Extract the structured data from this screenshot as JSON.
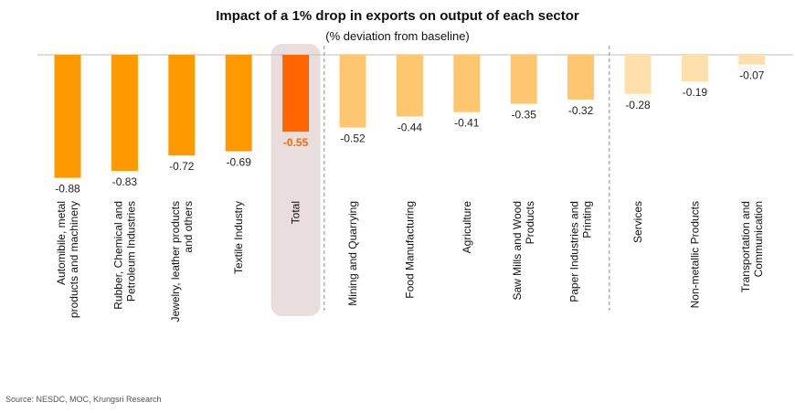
{
  "chart_data": {
    "type": "bar",
    "title": "Impact of a 1% drop in exports on output of each sector",
    "subtitle": "(% deviation from baseline)",
    "source": "Source: NESDC, MOC, Krungsri Research",
    "categories": [
      [
        "Automibile, metal",
        "products and machinery"
      ],
      [
        "Rubber, Chemical and",
        "Petroleum Industries"
      ],
      [
        "Jewelry, leather products",
        "and others"
      ],
      [
        "Textile Industry"
      ],
      [
        "Total"
      ],
      [
        "Mining and Quarrying"
      ],
      [
        "Food Manufacturing"
      ],
      [
        "Agriculture"
      ],
      [
        "Saw Mills and Wood",
        "Products"
      ],
      [
        "Paper Industries and",
        "Printing"
      ],
      [
        "Services"
      ],
      [
        "Non-metallic Products"
      ],
      [
        "Transportation and",
        "Communication"
      ]
    ],
    "values": [
      -0.88,
      -0.83,
      -0.72,
      -0.69,
      -0.55,
      -0.52,
      -0.44,
      -0.41,
      -0.35,
      -0.32,
      -0.28,
      -0.19,
      -0.07
    ],
    "value_labels": [
      "-0.88",
      "-0.83",
      "-0.72",
      "-0.69",
      "-0.55",
      "-0.52",
      "-0.44",
      "-0.41",
      "-0.35",
      "-0.32",
      "-0.28",
      "-0.19",
      "-0.07"
    ],
    "colors": [
      "#FF9900",
      "#FF9900",
      "#FF9900",
      "#FF9900",
      "#FF6600",
      "#FFC670",
      "#FFC670",
      "#FFC670",
      "#FFC670",
      "#FFC670",
      "#FFE0AC",
      "#FFE0AC",
      "#FFE0AC"
    ],
    "highlight_category_index": 4,
    "highlight_color": "#E9DEDD",
    "highlight_label_color": "#FF6600",
    "group_separators_after_index": [
      4,
      9
    ],
    "ylim": [
      -1.0,
      0
    ],
    "grid": false,
    "legend": "none"
  }
}
